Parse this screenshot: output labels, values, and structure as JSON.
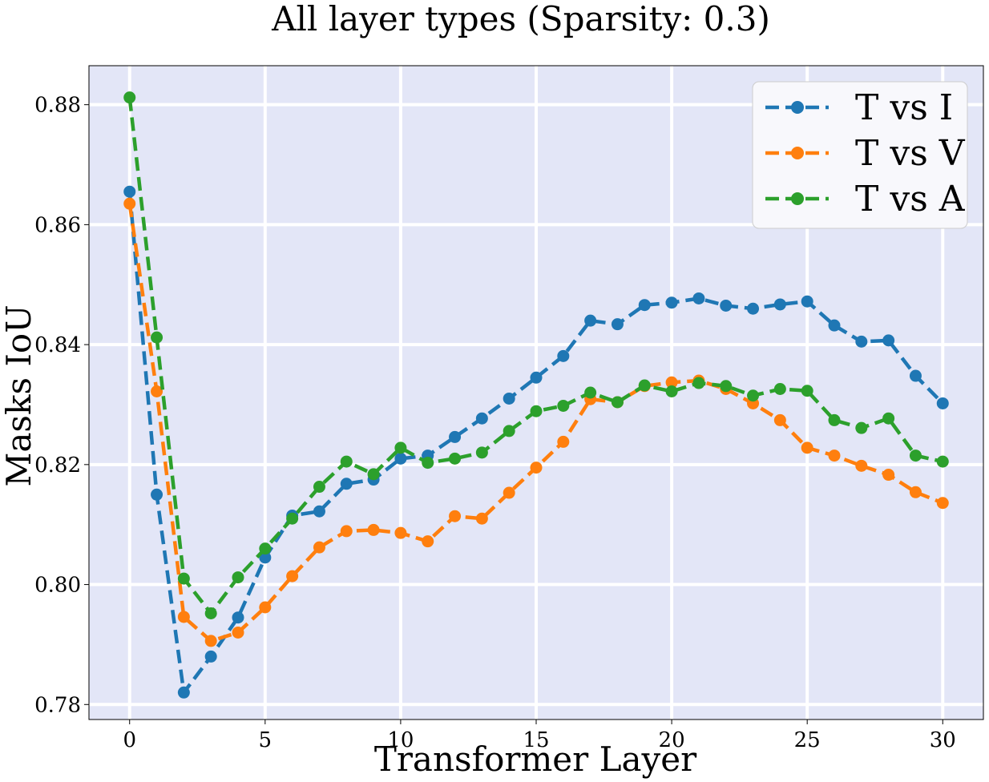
{
  "chart_data": {
    "type": "line",
    "title": "All layer types (Sparsity: 0.3)",
    "xlabel": "Transformer Layer",
    "ylabel": "Masks IoU",
    "xlim": [
      -1.5,
      31.5
    ],
    "ylim": [
      0.7775,
      0.8865
    ],
    "xticks": [
      0,
      5,
      10,
      15,
      20,
      25,
      30
    ],
    "yticks": [
      0.78,
      0.8,
      0.82,
      0.84,
      0.86,
      0.88
    ],
    "ytick_labels": [
      "0.78",
      "0.80",
      "0.82",
      "0.84",
      "0.86",
      "0.88"
    ],
    "grid": true,
    "background": "#e3e6f7",
    "legend_position": "top-right",
    "line_style": "dashed",
    "marker": "circle",
    "x": [
      0,
      1,
      2,
      3,
      4,
      5,
      6,
      7,
      8,
      9,
      10,
      11,
      12,
      13,
      14,
      15,
      16,
      17,
      18,
      19,
      20,
      21,
      22,
      23,
      24,
      25,
      26,
      27,
      28,
      29,
      30
    ],
    "series": [
      {
        "name": "T vs I",
        "color": "#1f77b4",
        "values": [
          0.8655,
          0.815,
          0.782,
          0.788,
          0.7945,
          0.8045,
          0.8115,
          0.8122,
          0.8168,
          0.8175,
          0.821,
          0.8215,
          0.8246,
          0.8277,
          0.831,
          0.8345,
          0.8381,
          0.844,
          0.8434,
          0.8466,
          0.847,
          0.8477,
          0.8465,
          0.846,
          0.8467,
          0.8472,
          0.8432,
          0.8405,
          0.8407,
          0.8348,
          0.8302
        ]
      },
      {
        "name": "T vs V",
        "color": "#ff7f0e",
        "values": [
          0.8635,
          0.8322,
          0.7946,
          0.7906,
          0.792,
          0.7962,
          0.8014,
          0.8062,
          0.8089,
          0.8091,
          0.8086,
          0.8072,
          0.8114,
          0.811,
          0.8153,
          0.8195,
          0.8238,
          0.8309,
          0.8304,
          0.8331,
          0.8337,
          0.834,
          0.8326,
          0.8302,
          0.8274,
          0.8228,
          0.8215,
          0.8198,
          0.8183,
          0.8154,
          0.8136
        ]
      },
      {
        "name": "T vs A",
        "color": "#2ca02c",
        "values": [
          0.8812,
          0.8412,
          0.801,
          0.7952,
          0.8012,
          0.806,
          0.811,
          0.8163,
          0.8205,
          0.8184,
          0.8228,
          0.8203,
          0.821,
          0.822,
          0.8256,
          0.8289,
          0.8298,
          0.832,
          0.8304,
          0.8332,
          0.8322,
          0.8336,
          0.8331,
          0.8315,
          0.8326,
          0.8323,
          0.8274,
          0.8261,
          0.8277,
          0.8215,
          0.8205
        ]
      }
    ]
  }
}
